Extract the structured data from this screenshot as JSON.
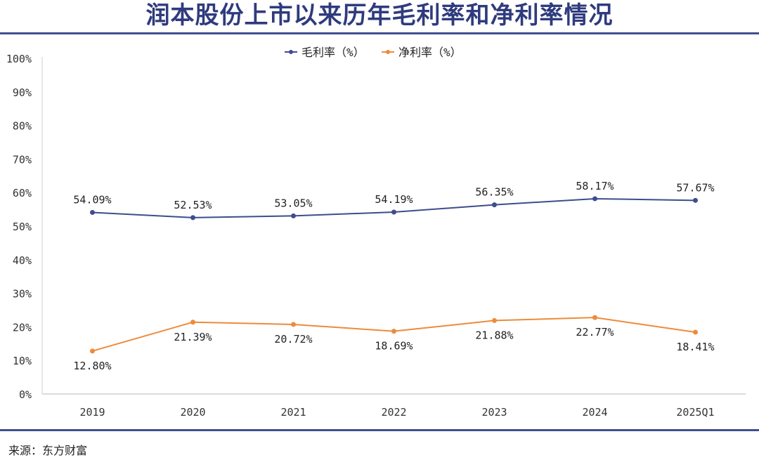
{
  "title": "润本股份上市以来历年毛利率和净利率情况",
  "source": "来源：东方财富",
  "chart_data": {
    "type": "line",
    "categories": [
      "2019",
      "2020",
      "2021",
      "2022",
      "2023",
      "2024",
      "2025Q1"
    ],
    "ylim": [
      0,
      100
    ],
    "yticks": [
      "0%",
      "10%",
      "20%",
      "30%",
      "40%",
      "50%",
      "60%",
      "70%",
      "80%",
      "90%",
      "100%"
    ],
    "grid": false,
    "legend_position": "top-center",
    "series": [
      {
        "name": "毛利率（%）",
        "color": "#3d4d8e",
        "values": [
          54.09,
          52.53,
          53.05,
          54.19,
          56.35,
          58.17,
          57.67
        ],
        "labels": [
          "54.09%",
          "52.53%",
          "53.05%",
          "54.19%",
          "56.35%",
          "58.17%",
          "57.67%"
        ]
      },
      {
        "name": "净利率（%）",
        "color": "#ed8b3b",
        "values": [
          12.8,
          21.39,
          20.72,
          18.69,
          21.88,
          22.77,
          18.41
        ],
        "labels": [
          "12.80%",
          "21.39%",
          "20.72%",
          "18.69%",
          "21.88%",
          "22.77%",
          "18.41%"
        ]
      }
    ]
  }
}
